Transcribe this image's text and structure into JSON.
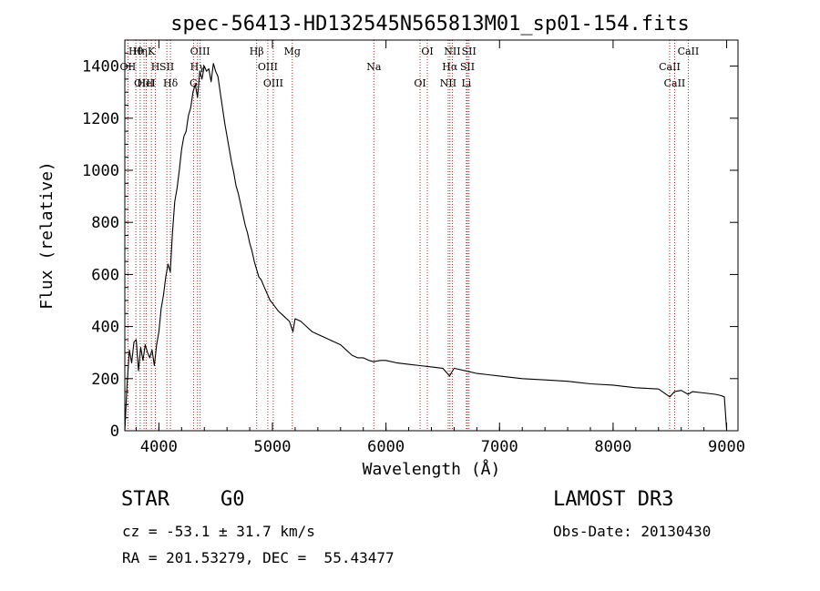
{
  "chart_data": {
    "type": "line",
    "title": "spec-56413-HD132545N565813M01_sp01-154.fits",
    "xlabel": "Wavelength (Å)",
    "ylabel": "Flux (relative)",
    "xlim": [
      3700,
      9100
    ],
    "ylim": [
      0,
      1500
    ],
    "xticks": [
      4000,
      5000,
      6000,
      7000,
      8000,
      9000
    ],
    "yticks": [
      0,
      200,
      400,
      600,
      800,
      1000,
      1200,
      1400
    ],
    "series": [
      {
        "name": "flux",
        "x": [
          3700,
          3720,
          3740,
          3760,
          3780,
          3800,
          3820,
          3840,
          3860,
          3880,
          3900,
          3920,
          3940,
          3960,
          3980,
          4000,
          4020,
          4040,
          4060,
          4080,
          4100,
          4120,
          4140,
          4160,
          4180,
          4200,
          4220,
          4240,
          4260,
          4280,
          4300,
          4320,
          4340,
          4360,
          4380,
          4400,
          4420,
          4440,
          4460,
          4480,
          4500,
          4520,
          4540,
          4560,
          4580,
          4600,
          4620,
          4640,
          4660,
          4680,
          4700,
          4720,
          4740,
          4760,
          4780,
          4800,
          4820,
          4840,
          4860,
          4880,
          4900,
          4920,
          4940,
          4960,
          4980,
          5000,
          5050,
          5100,
          5150,
          5180,
          5200,
          5250,
          5300,
          5350,
          5400,
          5450,
          5500,
          5550,
          5600,
          5650,
          5700,
          5750,
          5800,
          5850,
          5890,
          5950,
          6000,
          6100,
          6200,
          6300,
          6400,
          6500,
          6560,
          6600,
          6700,
          6800,
          6900,
          7000,
          7200,
          7400,
          7600,
          7800,
          8000,
          8200,
          8400,
          8500,
          8540,
          8600,
          8660,
          8700,
          8800,
          8900,
          8950,
          8980,
          9000
        ],
        "values": [
          0,
          180,
          310,
          260,
          340,
          350,
          230,
          320,
          270,
          330,
          300,
          280,
          310,
          250,
          330,
          380,
          470,
          520,
          590,
          640,
          610,
          760,
          880,
          930,
          1000,
          1080,
          1130,
          1150,
          1210,
          1240,
          1300,
          1330,
          1280,
          1380,
          1350,
          1400,
          1380,
          1390,
          1340,
          1410,
          1380,
          1360,
          1300,
          1240,
          1180,
          1130,
          1080,
          1030,
          990,
          940,
          910,
          870,
          830,
          790,
          760,
          720,
          690,
          650,
          620,
          590,
          580,
          560,
          540,
          520,
          500,
          490,
          460,
          440,
          420,
          380,
          430,
          420,
          400,
          380,
          370,
          360,
          350,
          340,
          330,
          310,
          290,
          280,
          280,
          270,
          265,
          270,
          270,
          260,
          255,
          250,
          245,
          240,
          210,
          240,
          230,
          220,
          215,
          210,
          200,
          195,
          190,
          180,
          175,
          165,
          160,
          130,
          150,
          155,
          140,
          150,
          145,
          140,
          135,
          130,
          5
        ]
      }
    ],
    "lines": [
      {
        "label": "Hθ",
        "wl": 3797
      },
      {
        "label": "OII",
        "wl": 3727
      },
      {
        "label": "OIII",
        "wl": 3869
      },
      {
        "label": "K",
        "wl": 3934
      },
      {
        "label": "H",
        "wl": 3969
      },
      {
        "label": "HeI",
        "wl": 3889
      },
      {
        "label": "Hη",
        "wl": 3835
      },
      {
        "label": "SII",
        "wl": 4070
      },
      {
        "label": "Hδ",
        "wl": 4102
      },
      {
        "label": "OIII",
        "wl": 4363
      },
      {
        "label": "Hγ",
        "wl": 4340
      },
      {
        "label": "G",
        "wl": 4305
      },
      {
        "label": "Hβ",
        "wl": 4861
      },
      {
        "label": "OIII",
        "wl": 4959
      },
      {
        "label": "OIII",
        "wl": 5007
      },
      {
        "label": "Mg",
        "wl": 5175
      },
      {
        "label": "Na",
        "wl": 5893
      },
      {
        "label": "OI",
        "wl": 6300
      },
      {
        "label": "OI",
        "wl": 6364
      },
      {
        "label": "Hα",
        "wl": 6563
      },
      {
        "label": "NII",
        "wl": 6548
      },
      {
        "label": "NII",
        "wl": 6584
      },
      {
        "label": "SII",
        "wl": 6717
      },
      {
        "label": "Li",
        "wl": 6708
      },
      {
        "label": "SII",
        "wl": 6731
      },
      {
        "label": "CaII",
        "wl": 8498
      },
      {
        "label": "CaII",
        "wl": 8542
      },
      {
        "label": "CaII",
        "wl": 8662
      }
    ]
  },
  "info": {
    "object_type": "STAR",
    "subclass": "G0",
    "survey": "LAMOST DR3",
    "redshift": "cz = -53.1 ± 31.7 km/s",
    "obs_date": "Obs-Date: 20130430",
    "coords": "RA = 201.53279, DEC =  55.43477"
  },
  "colors": {
    "line": "#000000",
    "marker": "#b22222"
  }
}
